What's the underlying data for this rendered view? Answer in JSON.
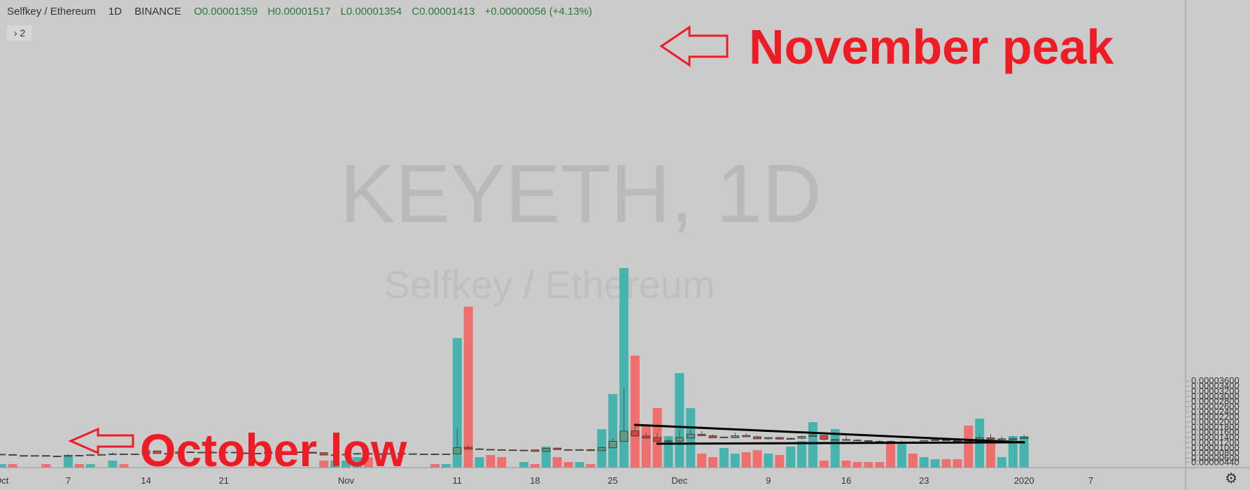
{
  "header": {
    "symbol": "Selfkey / Ethereum",
    "interval": "1D",
    "exchange": "BINANCE",
    "open": "O0.00001359",
    "high": "H0.00001517",
    "low": "L0.00001354",
    "close": "C0.00001413",
    "change": "+0.00000056 (+4.13%)",
    "indicator_count": "2"
  },
  "watermark": {
    "main": "KEYETH, 1D",
    "sub": "Selfkey / Ethereum"
  },
  "annotations": {
    "peak": "November peak",
    "low": "October low"
  },
  "colors": {
    "up": "#5e9c84",
    "down": "#d1483b",
    "vol_up": "#47b3af",
    "vol_down": "#ee6f6d",
    "annotation": "#ee1c25",
    "background": "#cbcbcb"
  },
  "icons": {
    "settings": "gear-icon",
    "expand": "chevron-right-icon"
  },
  "chart_data": {
    "type": "candlestick",
    "y_ticks": [
      "0.00000440",
      "0.00000600",
      "0.00000800",
      "0.00001000",
      "0.00001200",
      "0.00001400",
      "0.00001600",
      "0.00001800",
      "0.00002000",
      "0.00002200",
      "0.00002400",
      "0.00002600",
      "0.00002800",
      "0.00003000",
      "0.00003200",
      "0.00003400",
      "0.00003600"
    ],
    "x_ticks": [
      {
        "label": "Oct",
        "day": 0
      },
      {
        "label": "7",
        "day": 6
      },
      {
        "label": "14",
        "day": 13
      },
      {
        "label": "21",
        "day": 20
      },
      {
        "label": "Nov",
        "day": 31
      },
      {
        "label": "11",
        "day": 41
      },
      {
        "label": "18",
        "day": 48
      },
      {
        "label": "25",
        "day": 55
      },
      {
        "label": "Dec",
        "day": 61
      },
      {
        "label": "9",
        "day": 69
      },
      {
        "label": "16",
        "day": 76
      },
      {
        "label": "23",
        "day": 83
      },
      {
        "label": "2020",
        "day": 92
      },
      {
        "label": "7",
        "day": 98
      }
    ],
    "candles": [
      [
        7.3e-06,
        7.6e-06,
        7.1e-06,
        7.5e-06
      ],
      [
        7.4e-06,
        7.6e-06,
        7e-06,
        7.1e-06
      ],
      [
        7e-06,
        7.2e-06,
        6.8e-06,
        6.9e-06
      ],
      [
        6.9e-06,
        7.1e-06,
        6.8e-06,
        7e-06
      ],
      [
        7e-06,
        7.2e-06,
        6.6e-06,
        6.8e-06
      ],
      [
        6.8e-06,
        7e-06,
        6.4e-06,
        6.7e-06
      ],
      [
        6.7e-06,
        7.6e-06,
        6.4e-06,
        7.1e-06
      ],
      [
        7.1e-06,
        7.3e-06,
        6.9e-06,
        7e-06
      ],
      [
        7e-06,
        7.4e-06,
        6.9e-06,
        7.3e-06
      ],
      [
        7.3e-06,
        7.5e-06,
        7.2e-06,
        7.4e-06
      ],
      [
        7.4e-06,
        8.3e-06,
        7.3e-06,
        7.6e-06
      ],
      [
        7.6e-06,
        7.8e-06,
        7.4e-06,
        7.5e-06
      ],
      [
        7.5e-06,
        7.8e-06,
        7.4e-06,
        7.6e-06
      ],
      [
        7.7e-06,
        9e-06,
        7.6e-06,
        8.9e-06
      ],
      [
        8.8e-06,
        8.9e-06,
        7.8e-06,
        7.8e-06
      ],
      [
        7.8e-06,
        8e-06,
        7.6e-06,
        7.8e-06
      ],
      [
        7.8e-06,
        8.6e-06,
        7.7e-06,
        8.4e-06
      ],
      [
        8.4e-06,
        8.6e-06,
        8.1e-06,
        8.3e-06
      ],
      [
        8.2e-06,
        8.4e-06,
        8e-06,
        8.3e-06
      ],
      [
        8.3e-06,
        8.7e-06,
        8e-06,
        8.2e-06
      ],
      [
        8.2e-06,
        8.9e-06,
        8.1e-06,
        8.3e-06
      ],
      [
        8.3e-06,
        8.4e-06,
        8e-06,
        8.1e-06
      ],
      [
        8e-06,
        8.2e-06,
        7.8e-06,
        7.9e-06
      ],
      [
        7.9e-06,
        8e-06,
        7.7e-06,
        7.8e-06
      ],
      [
        7.8e-06,
        8.3e-06,
        7.6e-06,
        8.4e-06
      ],
      [
        8.4e-06,
        8.6e-06,
        8.2e-06,
        8.5e-06
      ],
      [
        8.5e-06,
        8.7e-06,
        8.4e-06,
        8.4e-06
      ],
      [
        8.4e-06,
        8.6e-06,
        8.2e-06,
        8.3e-06
      ],
      [
        8.3e-06,
        8.5e-06,
        7.9e-06,
        7.9e-06
      ],
      [
        8.1e-06,
        8.3e-06,
        7.2e-06,
        7.2e-06
      ],
      [
        7.2e-06,
        7.4e-06,
        7.1e-06,
        7.3e-06
      ],
      [
        7.3e-06,
        7.5e-06,
        7e-06,
        7.5e-06
      ],
      [
        7.6e-06,
        8e-06,
        7.3e-06,
        7.8e-06
      ],
      [
        7.8e-06,
        8.1e-06,
        7.4e-06,
        7.5e-06
      ],
      [
        7.4e-06,
        7.8e-06,
        7.2e-06,
        7.7e-06
      ],
      [
        7.7e-06,
        7.9e-06,
        7.6e-06,
        7.8e-06
      ],
      [
        7.8e-06,
        7.9e-06,
        7.6e-06,
        7.7e-06
      ],
      [
        7.7e-06,
        7.8e-06,
        7.6e-06,
        7.7e-06
      ],
      [
        7.6e-06,
        7.8e-06,
        7.3e-06,
        7.5e-06
      ],
      [
        7.6e-06,
        7.7e-06,
        7.4e-06,
        7.5e-06
      ],
      [
        7.5e-06,
        7.7e-06,
        7.4e-06,
        7.6e-06
      ],
      [
        7.6e-06,
        1.76e-05,
        7.5e-06,
        1.01e-05
      ],
      [
        1.02e-05,
        1.1e-05,
        9.3e-06,
        9.5e-06
      ],
      [
        9.6e-06,
        1e-05,
        9.4e-06,
        9.6e-06
      ],
      [
        9.4e-06,
        9.6e-06,
        9.2e-06,
        9.3e-06
      ],
      [
        9.3e-06,
        9.5e-06,
        9.1e-06,
        9.2e-06
      ],
      [
        9.2e-06,
        9.4e-06,
        9e-06,
        9.1e-06
      ],
      [
        9.1e-06,
        9.3e-06,
        8.9e-06,
        9.1e-06
      ],
      [
        9.2e-06,
        9.3e-06,
        8.6e-06,
        8.6e-06
      ],
      [
        8.6e-06,
        9.9e-06,
        8.5e-06,
        9.8e-06
      ],
      [
        9.9e-06,
        1e-05,
        9.2e-06,
        9.3e-06
      ],
      [
        9.3e-06,
        9.5e-06,
        9e-06,
        9.1e-06
      ],
      [
        9.1e-06,
        9.4e-06,
        8.9e-06,
        9.3e-06
      ],
      [
        9.3e-06,
        9.6e-06,
        8.7e-06,
        8.9e-06
      ],
      [
        8.9e-06,
        1.05e-05,
        8.8e-06,
        1.01e-05
      ],
      [
        1e-05,
        1.36e-05,
        9.8e-06,
        1.25e-05
      ],
      [
        1.25e-05,
        3.32e-05,
        1.24e-05,
        1.65e-05
      ],
      [
        1.66e-05,
        1.89e-05,
        1.42e-05,
        1.46e-05
      ],
      [
        1.46e-05,
        1.59e-05,
        1.35e-05,
        1.38e-05
      ],
      [
        1.4e-05,
        1.57e-05,
        1.16e-05,
        1.25e-05
      ],
      [
        1.25e-05,
        1.34e-05,
        1.19e-05,
        1.27e-05
      ],
      [
        1.26e-05,
        1.68e-05,
        1.23e-05,
        1.4e-05
      ],
      [
        1.38e-05,
        1.71e-05,
        1.35e-05,
        1.53e-05
      ],
      [
        1.53e-05,
        1.65e-05,
        1.45e-05,
        1.47e-05
      ],
      [
        1.47e-05,
        1.52e-05,
        1.38e-05,
        1.39e-05
      ],
      [
        1.41e-05,
        1.44e-05,
        1.38e-05,
        1.42e-05
      ],
      [
        1.39e-05,
        1.59e-05,
        1.38e-05,
        1.47e-05
      ],
      [
        1.48e-05,
        1.57e-05,
        1.42e-05,
        1.43e-05
      ],
      [
        1.43e-05,
        1.47e-05,
        1.34e-05,
        1.35e-05
      ],
      [
        1.35e-05,
        1.42e-05,
        1.32e-05,
        1.4e-05
      ],
      [
        1.4e-05,
        1.44e-05,
        1.32e-05,
        1.34e-05
      ],
      [
        1.33e-05,
        1.4e-05,
        1.31e-05,
        1.37e-05
      ],
      [
        1.37e-05,
        1.49e-05,
        1.33e-05,
        1.44e-05
      ],
      [
        1.44e-05,
        1.6e-05,
        1.43e-05,
        1.49e-05
      ],
      [
        1.48e-05,
        1.49e-05,
        1.27e-05,
        1.33e-05
      ],
      [
        1.31e-05,
        1.33e-05,
        1.3e-05,
        1.32e-05
      ],
      [
        1.32e-05,
        1.48e-05,
        1.29e-05,
        1.29e-05
      ],
      [
        1.3e-05,
        1.33e-05,
        1.27e-05,
        1.28e-05
      ],
      [
        1.28e-05,
        1.31e-05,
        1.23e-05,
        1.25e-05
      ],
      [
        1.25e-05,
        1.3e-05,
        1.24e-05,
        1.24e-05
      ],
      [
        1.25e-05,
        1.29e-05,
        1.2e-05,
        1.2e-05
      ],
      [
        1.2e-05,
        1.28e-05,
        1.19e-05,
        1.23e-05
      ],
      [
        1.23e-05,
        1.26e-05,
        1.19e-05,
        1.21e-05
      ],
      [
        1.21e-05,
        1.3e-05,
        1.2e-05,
        1.29e-05
      ],
      [
        1.29e-05,
        1.36e-05,
        1.27e-05,
        1.31e-05
      ],
      [
        1.31e-05,
        1.34e-05,
        1.29e-05,
        1.29e-05
      ],
      [
        1.29e-05,
        1.3e-05,
        1.24e-05,
        1.25e-05
      ],
      [
        1.25e-05,
        1.31e-05,
        1.18e-05,
        1.2e-05
      ],
      [
        1.2e-05,
        1.51e-05,
        1.19e-05,
        1.39e-05
      ],
      [
        1.39e-05,
        1.54e-05,
        1.31e-05,
        1.34e-05
      ],
      [
        1.34e-05,
        1.44e-05,
        1.32e-05,
        1.35e-05
      ],
      [
        1.35e-05,
        1.42e-05,
        1.33e-05,
        1.35e-05
      ],
      [
        1.359e-05,
        1.517e-05,
        1.354e-05,
        1.413e-05
      ]
    ],
    "volume": [
      5,
      5,
      0,
      0,
      5,
      0,
      18,
      5,
      5,
      0,
      10,
      5,
      0,
      0,
      0,
      0,
      0,
      0,
      0,
      0,
      0,
      0,
      0,
      0,
      0,
      0,
      0,
      0,
      0,
      10,
      10,
      10,
      15,
      15,
      0,
      0,
      0,
      0,
      0,
      5,
      5,
      185,
      230,
      15,
      18,
      15,
      0,
      8,
      5,
      30,
      15,
      8,
      8,
      5,
      55,
      105,
      285,
      160,
      60,
      85,
      45,
      135,
      85,
      20,
      15,
      28,
      20,
      22,
      25,
      20,
      18,
      30,
      38,
      65,
      10,
      55,
      10,
      8,
      8,
      8,
      35,
      35,
      20,
      15,
      12,
      12,
      12,
      60,
      70,
      35,
      15,
      45,
      45
    ],
    "trendlines": [
      {
        "from": {
          "day": 57,
          "price": 1.89e-05
        },
        "to": {
          "day": 92,
          "price": 1.215e-05
        }
      },
      {
        "from": {
          "day": 59,
          "price": 1.16e-05
        },
        "to": {
          "day": 92,
          "price": 1.215e-05
        }
      }
    ]
  }
}
